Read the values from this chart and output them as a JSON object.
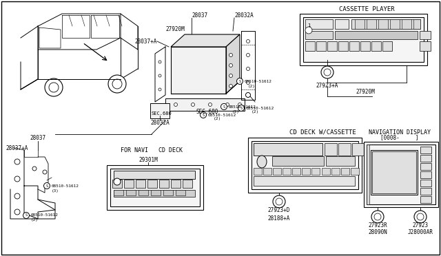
{
  "bg_color": "#ffffff",
  "line_color": "#000000",
  "text_color": "#000000",
  "labels": {
    "cassette_player": "CASSETTE PLAYER",
    "cd_deck_w_cassette": "CD DECK W/CASSETTE",
    "navigation_display": "NAVIGATION DISPLAY",
    "navigation_display2": "[0008-     ]",
    "for_navi_cd_deck": "FOR NAVI   CD DECK",
    "sec_680": "SEC.680",
    "28037_top": "28037",
    "28037_plus_A_top": "28037+A",
    "28032A_top": "28032A",
    "28032A_bot": "28032A",
    "27920M_top": "27920M",
    "27920M_bot": "27920M",
    "27923_plus_A": "27923+A",
    "27923_plus_D": "27923+D",
    "27923R": "27923R",
    "27923": "27923",
    "28090N": "28090N",
    "J28000AR": "J28000AR",
    "28188_plus_A": "28188+A",
    "29301M": "29301M",
    "28037_bot": "28037",
    "28037_plus_A_bot": "28037+A"
  },
  "figsize": [
    6.4,
    3.72
  ],
  "dpi": 100
}
